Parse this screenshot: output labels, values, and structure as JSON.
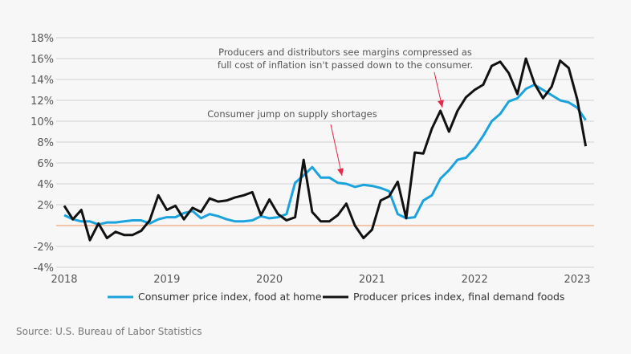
{
  "chart_data": {
    "type": "line",
    "title": "",
    "xlabel": "",
    "ylabel": "",
    "x_start": "2018-01",
    "x_frequency": "monthly",
    "x_ticks": [
      "2018",
      "2019",
      "2020",
      "2021",
      "2022",
      "2023"
    ],
    "y_ticks": [
      "-4%",
      "-2%",
      "",
      "2%",
      "4%",
      "6%",
      "8%",
      "10%",
      "12%",
      "14%",
      "16%",
      "18%"
    ],
    "ylim": [
      -4,
      18
    ],
    "grid": true,
    "legend_position": "bottom",
    "colors": {
      "cpi": "#1ba3dd",
      "ppi": "#111111",
      "zero": "#f0a77a",
      "arrow": "#e8284a",
      "grid": "#dddddd"
    },
    "series": [
      {
        "name": "Consumer price index, food at home",
        "values": [
          1.0,
          0.6,
          0.4,
          0.4,
          0.1,
          0.3,
          0.3,
          0.4,
          0.5,
          0.5,
          0.2,
          0.6,
          0.8,
          0.8,
          1.2,
          1.4,
          0.7,
          1.1,
          0.9,
          0.6,
          0.4,
          0.4,
          0.5,
          0.9,
          0.7,
          0.8,
          1.1,
          4.1,
          4.8,
          5.6,
          4.6,
          4.6,
          4.1,
          4.0,
          3.7,
          3.9,
          3.8,
          3.6,
          3.3,
          1.1,
          0.7,
          0.8,
          2.4,
          2.9,
          4.5,
          5.3,
          6.3,
          6.5,
          7.4,
          8.6,
          10.0,
          10.7,
          11.9,
          12.2,
          13.1,
          13.5,
          13.0,
          12.5,
          12.0,
          11.8,
          11.3,
          10.1
        ]
      },
      {
        "name": "Producer prices index, final demand foods",
        "values": [
          1.9,
          0.6,
          1.5,
          -1.4,
          0.2,
          -1.2,
          -0.6,
          -0.9,
          -0.9,
          -0.5,
          0.5,
          2.9,
          1.5,
          1.9,
          0.6,
          1.7,
          1.3,
          2.6,
          2.3,
          2.4,
          2.7,
          2.9,
          3.2,
          1.0,
          2.5,
          1.1,
          0.5,
          0.8,
          6.3,
          1.3,
          0.4,
          0.4,
          1.0,
          2.1,
          0.0,
          -1.2,
          -0.4,
          2.4,
          2.8,
          4.2,
          0.7,
          7.0,
          6.9,
          9.3,
          11.0,
          9.0,
          11.0,
          12.3,
          13.0,
          13.5,
          15.3,
          15.7,
          14.6,
          12.6,
          16.0,
          13.6,
          12.2,
          13.3,
          15.8,
          15.1,
          12.1,
          7.6
        ]
      }
    ],
    "annotations": [
      {
        "lines": [
          "Producers and distributors see margins compressed as",
          "full cost of inflation isn't passed down to the consumer."
        ],
        "points_to": "2021-09"
      },
      {
        "lines": [
          "Consumer jump on supply shortages"
        ],
        "points_to": "2020-10"
      }
    ]
  },
  "source": "Source: U.S. Bureau of Labor  Statistics"
}
